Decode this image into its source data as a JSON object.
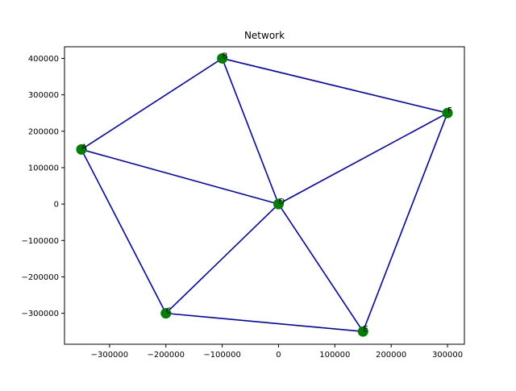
{
  "chart_data": {
    "type": "scatter",
    "title": "Network",
    "xlabel": "",
    "ylabel": "",
    "xlim": [
      -380000,
      330000
    ],
    "ylim": [
      -385000,
      432000
    ],
    "xticks": [
      -300000,
      -200000,
      -100000,
      0,
      100000,
      200000,
      300000
    ],
    "yticks": [
      -300000,
      -200000,
      -100000,
      0,
      100000,
      200000,
      300000,
      400000
    ],
    "xtick_labels": [
      "−300000",
      "−200000",
      "−100000",
      "0",
      "100000",
      "200000",
      "300000"
    ],
    "ytick_labels": [
      "−300000",
      "−200000",
      "−100000",
      "0",
      "100000",
      "200000",
      "300000",
      "400000"
    ],
    "grid": false,
    "node_color": "#008000",
    "edge_color": "#0000cc",
    "nodes": [
      {
        "id": "A",
        "x": -350000,
        "y": 150000
      },
      {
        "id": "B",
        "x": -100000,
        "y": 400000
      },
      {
        "id": "C",
        "x": -200000,
        "y": -300000
      },
      {
        "id": "D",
        "x": 0,
        "y": 0
      },
      {
        "id": "E",
        "x": 150000,
        "y": -350000
      },
      {
        "id": "F",
        "x": 300000,
        "y": 250000
      }
    ],
    "edges": [
      [
        "A",
        "B"
      ],
      [
        "A",
        "D"
      ],
      [
        "A",
        "C"
      ],
      [
        "B",
        "D"
      ],
      [
        "B",
        "F"
      ],
      [
        "C",
        "D"
      ],
      [
        "C",
        "E"
      ],
      [
        "D",
        "E"
      ],
      [
        "D",
        "F"
      ],
      [
        "E",
        "F"
      ]
    ]
  }
}
